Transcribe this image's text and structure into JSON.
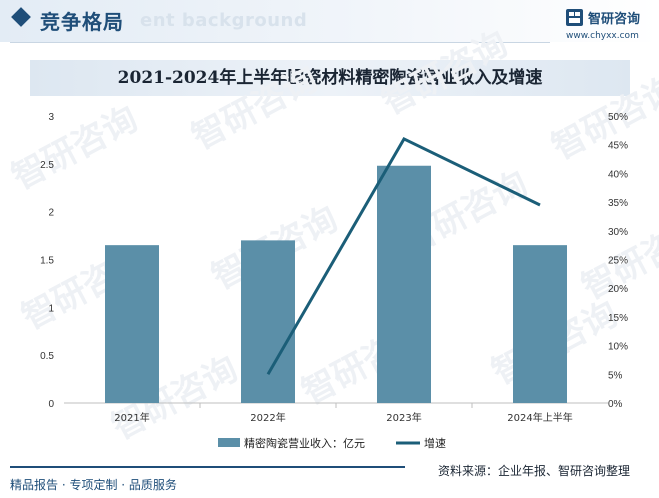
{
  "header": {
    "section_title": "竞争格局",
    "ghost_text": "ent background",
    "brand_name": "智研咨询",
    "brand_url": "www.chyxx.com"
  },
  "watermark": "智研咨询",
  "colors": {
    "brand_blue": "#1f4e79",
    "bar_color": "#5b8fa8",
    "line_color": "#1b5e78"
  },
  "chart_data": {
    "type": "bar",
    "title": "2021-2024年上半年国瓷材料精密陶瓷营业收入及增速",
    "categories": [
      "2021年",
      "2022年",
      "2023年",
      "2024年上半年"
    ],
    "series": [
      {
        "name": "精密陶瓷营业收入：亿元",
        "type": "bar",
        "axis": "left",
        "values": [
          1.65,
          1.7,
          2.48,
          1.65
        ]
      },
      {
        "name": "增速",
        "type": "line",
        "axis": "right",
        "values": [
          null,
          5,
          46,
          34.5
        ]
      }
    ],
    "y_left": {
      "min": 0,
      "max": 3,
      "ticks": [
        "0",
        "0.5",
        "1",
        "1.5",
        "2",
        "2.5",
        "3"
      ]
    },
    "y_right": {
      "min": 0,
      "max": 50,
      "ticks": [
        "0%",
        "5%",
        "10%",
        "15%",
        "20%",
        "25%",
        "30%",
        "35%",
        "40%",
        "45%",
        "50%"
      ]
    },
    "legend_position": "bottom",
    "grid": false
  },
  "footer": {
    "left_text": "精品报告 · 专项定制 · 品质服务",
    "right_text": "资料来源：企业年报、智研咨询整理"
  }
}
